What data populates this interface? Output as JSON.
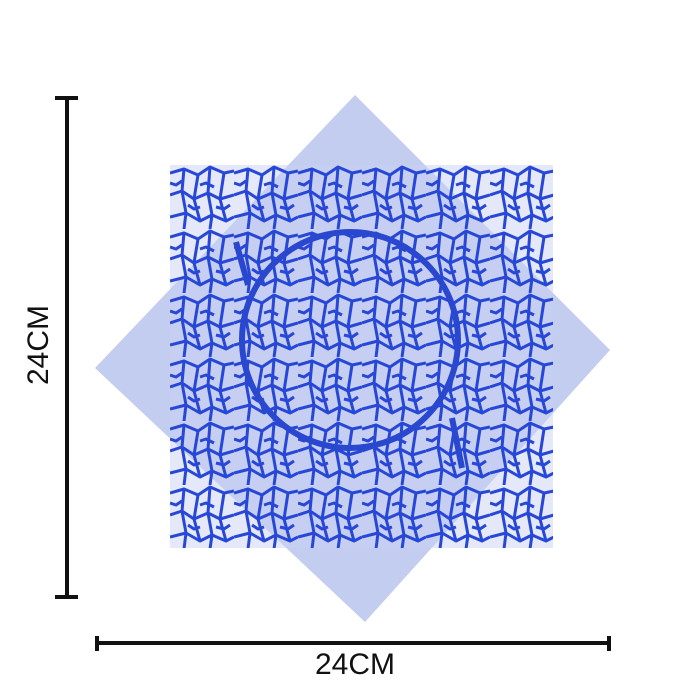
{
  "dimensions": {
    "height_label": "24CM",
    "width_label": "24CM"
  }
}
